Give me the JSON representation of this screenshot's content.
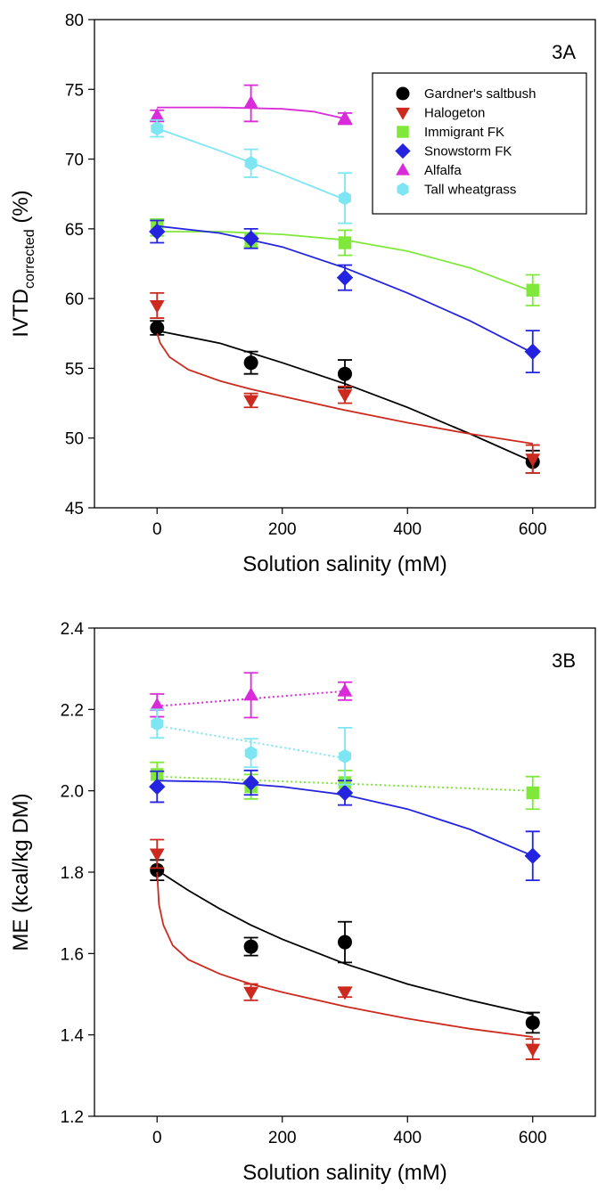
{
  "chart_data": [
    {
      "type": "scatter",
      "panel_label": "3A",
      "xlabel": "Solution salinity (mM)",
      "ylabel_main": "IVTD",
      "ylabel_sub": "corrected",
      "ylabel_unit": " (%)",
      "xlim": [
        -100,
        700
      ],
      "ylim": [
        45,
        80
      ],
      "xticks": [
        0,
        200,
        400,
        600
      ],
      "yticks": [
        45,
        50,
        55,
        60,
        65,
        70,
        75,
        80
      ],
      "grid": false,
      "legend_position": "top-right",
      "series": [
        {
          "name": "Gardner's saltbush",
          "marker": "circle",
          "color": "#000000",
          "x": [
            0,
            150,
            300,
            600
          ],
          "y": [
            57.9,
            55.4,
            54.6,
            48.3
          ],
          "err": [
            0.5,
            0.8,
            1.0,
            0.8
          ],
          "fit_x": [
            0,
            100,
            200,
            300,
            400,
            500,
            600
          ],
          "fit_y": [
            57.7,
            56.8,
            55.4,
            53.9,
            52.2,
            50.3,
            48.3
          ],
          "fit_style": "solid"
        },
        {
          "name": "Halogeton",
          "marker": "triangle-down",
          "color": "#cc2a1e",
          "x": [
            0,
            150,
            300,
            600
          ],
          "y": [
            59.5,
            52.7,
            53.1,
            48.5
          ],
          "err": [
            0.9,
            0.5,
            0.6,
            1.0
          ],
          "fit_x": [
            0,
            5,
            20,
            50,
            100,
            150,
            200,
            300,
            400,
            500,
            600
          ],
          "fit_y": [
            57.5,
            56.8,
            55.8,
            54.9,
            54.1,
            53.5,
            53.0,
            52.0,
            51.1,
            50.3,
            49.6
          ],
          "fit_style": "solid"
        },
        {
          "name": "Immigrant FK",
          "marker": "square",
          "color": "#80e83a",
          "x": [
            0,
            150,
            300,
            600
          ],
          "y": [
            65.1,
            64.2,
            64.0,
            60.6
          ],
          "err": [
            0.6,
            0.5,
            0.9,
            1.1
          ],
          "fit_x": [
            0,
            100,
            200,
            300,
            400,
            500,
            600
          ],
          "fit_y": [
            64.8,
            64.8,
            64.6,
            64.2,
            63.4,
            62.2,
            60.5
          ],
          "fit_style": "solid"
        },
        {
          "name": "Snowstorm FK",
          "marker": "diamond",
          "color": "#2424e0",
          "x": [
            0,
            150,
            300,
            600
          ],
          "y": [
            64.8,
            64.3,
            61.5,
            56.2
          ],
          "err": [
            0.8,
            0.7,
            0.9,
            1.5
          ],
          "fit_x": [
            0,
            100,
            200,
            300,
            400,
            500,
            600
          ],
          "fit_y": [
            65.2,
            64.7,
            63.7,
            62.2,
            60.4,
            58.4,
            56.1
          ],
          "fit_style": "solid"
        },
        {
          "name": "Alfalfa",
          "marker": "triangle-up",
          "color": "#d92bd9",
          "x": [
            0,
            150,
            300
          ],
          "y": [
            73.1,
            74.0,
            72.9
          ],
          "err": [
            0.4,
            1.3,
            0.4
          ],
          "fit_x": [
            0,
            100,
            200,
            250,
            280,
            300
          ],
          "fit_y": [
            73.7,
            73.7,
            73.6,
            73.4,
            73.1,
            72.9
          ],
          "fit_style": "solid"
        },
        {
          "name": "Tall wheatgrass",
          "marker": "hexagon",
          "color": "#7ee6f2",
          "x": [
            0,
            150,
            300
          ],
          "y": [
            72.2,
            69.7,
            67.2
          ],
          "err": [
            0.6,
            1.0,
            1.8
          ],
          "fit_x": [
            0,
            100,
            200,
            300
          ],
          "fit_y": [
            72.2,
            70.6,
            68.9,
            67.1
          ],
          "fit_style": "solid"
        }
      ]
    },
    {
      "type": "scatter",
      "panel_label": "3B",
      "xlabel": "Solution salinity (mM)",
      "ylabel_main": "ME (kcal/kg DM)",
      "ylabel_sub": "",
      "ylabel_unit": "",
      "xlim": [
        -100,
        700
      ],
      "ylim": [
        1.2,
        2.4
      ],
      "xticks": [
        0,
        200,
        400,
        600
      ],
      "yticks": [
        1.2,
        1.4,
        1.6,
        1.8,
        2.0,
        2.2,
        2.4
      ],
      "ytick_labels": [
        "1.2",
        "1.4",
        "1.6",
        "1.8",
        "2.0",
        "2.2",
        "2.4"
      ],
      "grid": false,
      "series": [
        {
          "name": "Gardner's saltbush",
          "marker": "circle",
          "color": "#000000",
          "x": [
            0,
            150,
            300,
            600
          ],
          "y": [
            1.805,
            1.617,
            1.628,
            1.43
          ],
          "err": [
            0.025,
            0.022,
            0.05,
            0.025
          ],
          "fit_x": [
            0,
            50,
            100,
            150,
            200,
            300,
            400,
            500,
            600
          ],
          "fit_y": [
            1.805,
            1.755,
            1.71,
            1.67,
            1.635,
            1.575,
            1.525,
            1.485,
            1.45
          ],
          "fit_style": "solid"
        },
        {
          "name": "Halogeton",
          "marker": "triangle-down",
          "color": "#cc2a1e",
          "x": [
            0,
            150,
            300,
            600
          ],
          "y": [
            1.845,
            1.505,
            1.505,
            1.365
          ],
          "err": [
            0.035,
            0.02,
            0.012,
            0.025
          ],
          "fit_x": [
            0,
            3,
            10,
            25,
            50,
            100,
            150,
            200,
            300,
            400,
            500,
            600
          ],
          "fit_y": [
            1.8,
            1.72,
            1.67,
            1.62,
            1.585,
            1.55,
            1.525,
            1.505,
            1.47,
            1.44,
            1.415,
            1.395
          ],
          "fit_style": "solid"
        },
        {
          "name": "Immigrant FK",
          "marker": "square",
          "color": "#80e83a",
          "x": [
            0,
            150,
            300,
            600
          ],
          "y": [
            2.04,
            2.01,
            2.02,
            1.995
          ],
          "err": [
            0.03,
            0.03,
            0.03,
            0.04
          ],
          "fit_x": [
            0,
            600
          ],
          "fit_y": [
            2.035,
            2.0
          ],
          "fit_style": "dotted"
        },
        {
          "name": "Snowstorm FK",
          "marker": "diamond",
          "color": "#2424e0",
          "x": [
            0,
            150,
            300,
            600
          ],
          "y": [
            2.01,
            2.02,
            1.995,
            1.84
          ],
          "err": [
            0.038,
            0.03,
            0.03,
            0.06
          ],
          "fit_x": [
            0,
            100,
            200,
            300,
            400,
            500,
            600
          ],
          "fit_y": [
            2.025,
            2.022,
            2.01,
            1.99,
            1.955,
            1.905,
            1.84
          ],
          "fit_style": "solid"
        },
        {
          "name": "Alfalfa",
          "marker": "triangle-up",
          "color": "#d92bd9",
          "x": [
            0,
            150,
            300
          ],
          "y": [
            2.21,
            2.235,
            2.245
          ],
          "err": [
            0.028,
            0.055,
            0.022
          ],
          "fit_x": [
            0,
            300
          ],
          "fit_y": [
            2.208,
            2.245
          ],
          "fit_style": "dotted"
        },
        {
          "name": "Tall wheatgrass",
          "marker": "hexagon",
          "color": "#7ee6f2",
          "x": [
            0,
            150,
            300
          ],
          "y": [
            2.165,
            2.093,
            2.085
          ],
          "err": [
            0.035,
            0.035,
            0.07
          ],
          "fit_x": [
            0,
            300
          ],
          "fit_y": [
            2.16,
            2.08
          ],
          "fit_style": "dotted"
        }
      ]
    }
  ]
}
